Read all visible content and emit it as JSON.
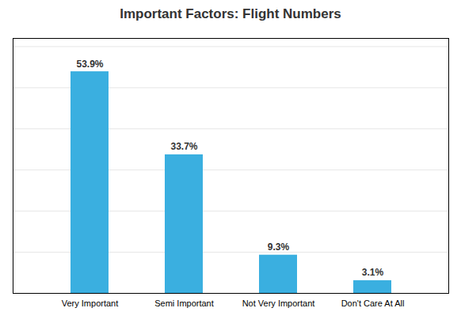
{
  "chart_data": {
    "type": "bar",
    "title": "Important Factors: Flight Numbers",
    "categories": [
      "Very Important",
      "Semi Important",
      "Not Very Important",
      "Don't Care At All"
    ],
    "values": [
      53.9,
      33.7,
      9.3,
      3.1
    ],
    "value_labels": [
      "53.9%",
      "33.7%",
      "9.3%",
      "3.1%"
    ],
    "data_labels": true,
    "color": "#3aafe0",
    "ylim": [
      0,
      62
    ],
    "yticks": [
      0,
      10,
      20,
      30,
      40,
      50,
      60
    ],
    "grid": true,
    "tick_labels": "x"
  }
}
